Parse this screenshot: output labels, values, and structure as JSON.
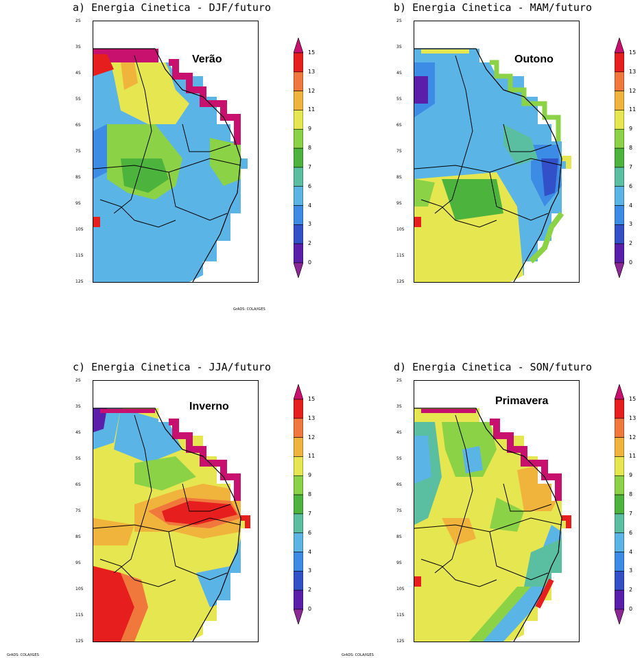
{
  "panels": [
    {
      "title": "a) Energia Cinetica - DJF/futuro",
      "season": "Verão"
    },
    {
      "title": "b) Energia Cinetica - MAM/futuro",
      "season": "Outono"
    },
    {
      "title": "c) Energia Cinetica - JJA/futuro",
      "season": "Inverno"
    },
    {
      "title": "d) Energia Cinetica - SON/futuro",
      "season": "Primavera"
    }
  ],
  "lat_labels": [
    "2S",
    "3S",
    "4S",
    "5S",
    "6S",
    "7S",
    "8S",
    "9S",
    "10S",
    "11S",
    "12S"
  ],
  "colorbar": {
    "labels": [
      "15",
      "13",
      "12",
      "11",
      "9",
      "8",
      "7",
      "6",
      "4",
      "3",
      "2",
      "0"
    ],
    "colors": [
      "#c8106e",
      "#e61e1e",
      "#f0783c",
      "#f0b43c",
      "#e6e650",
      "#8cd246",
      "#4cb43c",
      "#5abea0",
      "#5ab4e6",
      "#3c8ce6",
      "#3250c8",
      "#5a1eaa",
      "#8c2896"
    ]
  },
  "credits": [
    "GrADS: COLA/IGES",
    "GrADS: COLA/IGES",
    "GrADS: COLA/IGES"
  ]
}
